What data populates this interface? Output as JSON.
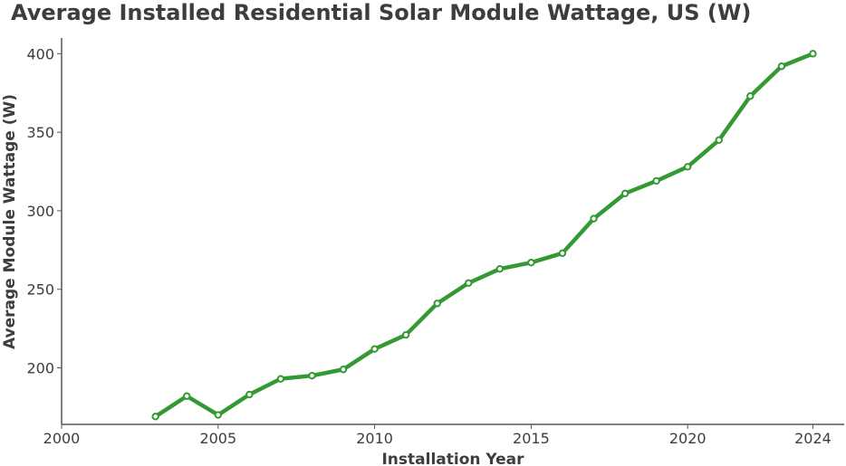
{
  "chart_data": {
    "type": "line",
    "title": "Average Installed Residential Solar Module Wattage, US (W)",
    "xlabel": "Installation Year",
    "ylabel": "Average Module Wattage (W)",
    "xlim": [
      2000,
      2025
    ],
    "ylim": [
      164,
      410
    ],
    "xticks": [
      2000,
      2005,
      2010,
      2015,
      2020,
      2024
    ],
    "yticks": [
      200,
      250,
      300,
      350,
      400
    ],
    "grid": false,
    "series": [
      {
        "name": "Average Module Wattage",
        "color": "#339933",
        "x": [
          2003,
          2004,
          2005,
          2006,
          2007,
          2008,
          2009,
          2010,
          2011,
          2012,
          2013,
          2014,
          2015,
          2016,
          2017,
          2018,
          2019,
          2020,
          2021,
          2022,
          2023,
          2024
        ],
        "y": [
          169,
          182,
          170,
          183,
          193,
          195,
          199,
          212,
          221,
          241,
          254,
          263,
          267,
          273,
          295,
          311,
          319,
          328,
          345,
          373,
          392,
          400
        ]
      }
    ]
  }
}
